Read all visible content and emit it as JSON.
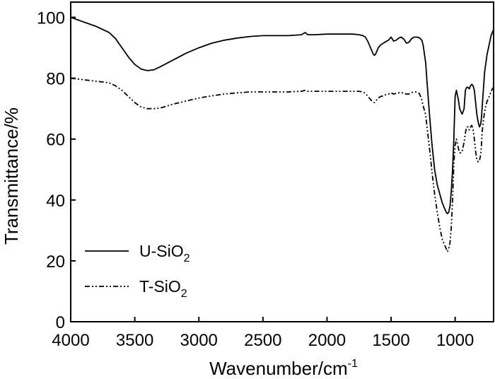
{
  "chart_data": {
    "type": "line",
    "xlabel": "Wavenumber/cm",
    "xlabel_sup": "-1",
    "ylabel": "Transmittance/%",
    "xlim": [
      4000,
      700
    ],
    "ylim": [
      0,
      105
    ],
    "x_reversed": true,
    "xticks": [
      4000,
      3500,
      3000,
      2500,
      2000,
      1500,
      1000
    ],
    "yticks": [
      0,
      20,
      40,
      60,
      80,
      100
    ],
    "grid": false,
    "legend_position": "bottom-left",
    "series": [
      {
        "name": "U-SiO2",
        "legend_text": "U-SiO",
        "legend_sub": "2",
        "color": "#000000",
        "dash": "solid",
        "x": [
          4000,
          3900,
          3800,
          3700,
          3650,
          3600,
          3550,
          3500,
          3450,
          3400,
          3350,
          3300,
          3200,
          3100,
          3000,
          2900,
          2800,
          2700,
          2600,
          2500,
          2400,
          2300,
          2200,
          2170,
          2150,
          2100,
          2000,
          1900,
          1800,
          1750,
          1720,
          1700,
          1680,
          1660,
          1640,
          1630,
          1620,
          1600,
          1580,
          1560,
          1550,
          1520,
          1500,
          1480,
          1460,
          1440,
          1420,
          1400,
          1380,
          1360,
          1340,
          1320,
          1300,
          1280,
          1260,
          1250,
          1230,
          1220,
          1200,
          1180,
          1160,
          1140,
          1120,
          1100,
          1080,
          1070,
          1060,
          1050,
          1040,
          1030,
          1020,
          1010,
          1000,
          990,
          975,
          965,
          955,
          945,
          930,
          920,
          910,
          900,
          890,
          880,
          870,
          860,
          850,
          840,
          830,
          820,
          810,
          800,
          795,
          790,
          780,
          770,
          760,
          750,
          740,
          730,
          720,
          710,
          700
        ],
        "y": [
          100,
          98.5,
          97,
          95,
          93,
          90,
          87,
          84.5,
          83,
          82.5,
          82.8,
          83.8,
          86,
          88.2,
          90,
          91.5,
          92.5,
          93.2,
          93.7,
          94,
          94,
          94,
          94.3,
          95,
          94.3,
          94.3,
          94.5,
          94.5,
          94.5,
          94.3,
          94,
          93.5,
          92,
          90,
          88,
          87.5,
          88,
          90,
          91,
          91.5,
          91.8,
          92.5,
          93.5,
          92.2,
          92.5,
          93.2,
          93.5,
          92.8,
          91.5,
          91.8,
          93,
          93.5,
          93.5,
          93.3,
          92.5,
          91,
          85,
          79,
          68,
          58,
          50,
          45,
          42,
          39,
          37,
          36,
          35.5,
          36,
          38,
          43,
          50,
          60,
          74,
          76,
          73,
          70,
          69,
          68.2,
          70,
          76,
          77,
          77,
          76.5,
          77.5,
          78,
          77.5,
          76,
          72,
          68,
          65.5,
          64,
          65,
          67,
          70,
          76,
          82,
          85,
          88,
          90,
          92,
          94,
          95,
          96
        ]
      },
      {
        "name": "T-SiO2",
        "legend_text": "T-SiO",
        "legend_sub": "2",
        "color": "#000000",
        "dash": "dash-dot-dot",
        "x": [
          4000,
          3900,
          3800,
          3700,
          3650,
          3600,
          3550,
          3500,
          3450,
          3400,
          3350,
          3300,
          3200,
          3100,
          3000,
          2900,
          2800,
          2700,
          2600,
          2500,
          2400,
          2300,
          2200,
          2170,
          2150,
          2100,
          2000,
          1900,
          1800,
          1750,
          1720,
          1700,
          1680,
          1660,
          1640,
          1630,
          1620,
          1600,
          1580,
          1560,
          1550,
          1520,
          1500,
          1480,
          1460,
          1440,
          1420,
          1400,
          1380,
          1360,
          1340,
          1320,
          1300,
          1280,
          1260,
          1250,
          1230,
          1220,
          1200,
          1180,
          1160,
          1140,
          1120,
          1100,
          1080,
          1070,
          1060,
          1050,
          1040,
          1030,
          1020,
          1010,
          1000,
          990,
          975,
          965,
          955,
          945,
          930,
          920,
          910,
          900,
          890,
          880,
          870,
          860,
          850,
          840,
          830,
          820,
          810,
          800,
          795,
          790,
          780,
          770,
          760,
          750,
          740,
          730,
          720,
          710,
          700
        ],
        "y": [
          80,
          79.5,
          79,
          78.5,
          77.5,
          76,
          74,
          72,
          70.5,
          70,
          70,
          70.2,
          71.5,
          72.5,
          73.5,
          74.2,
          74.8,
          75.2,
          75.5,
          75.5,
          75.5,
          75.5,
          75.7,
          76,
          75.7,
          75.7,
          75.7,
          75.7,
          75.7,
          75.7,
          75.5,
          75,
          74,
          73,
          72.2,
          72,
          72.5,
          73.5,
          74,
          74.2,
          74.5,
          74.8,
          75.2,
          74.8,
          75,
          75.2,
          75.3,
          75,
          74.8,
          74.8,
          75.3,
          75.5,
          75.5,
          75,
          73,
          71,
          68,
          64,
          57,
          49,
          42,
          36,
          31,
          27,
          25,
          24,
          23,
          24,
          26,
          31,
          40,
          52,
          58,
          60,
          57,
          55.5,
          55.5,
          56,
          59,
          62,
          64,
          64,
          63,
          64,
          64.5,
          63,
          60,
          56,
          53,
          52.5,
          53,
          55,
          58,
          62,
          66,
          69,
          71,
          72.5,
          73.5,
          74.5,
          75.5,
          76.5,
          77
        ]
      }
    ]
  }
}
